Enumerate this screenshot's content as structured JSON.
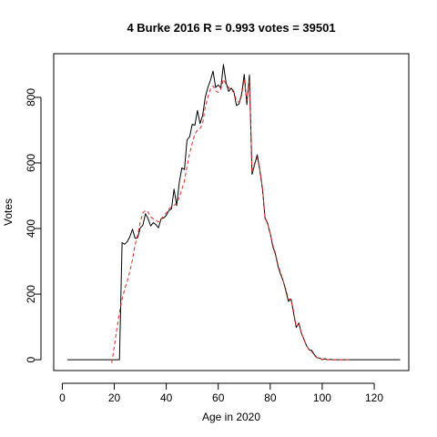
{
  "chart_data": {
    "type": "line",
    "title": "4 Burke 2016 R = 0.993 votes = 39501",
    "xlabel": "Age in 2020",
    "ylabel": "Votes",
    "xlim": [
      -3.3,
      133.3
    ],
    "ylim": [
      -33,
      933
    ],
    "xticks": [
      0,
      20,
      40,
      60,
      80,
      100,
      120
    ],
    "yticks": [
      0,
      200,
      400,
      600,
      800
    ],
    "grid": false,
    "legend": "none",
    "series": [
      {
        "style": "solid",
        "color": "#000000",
        "x": [
          2,
          20,
          21,
          22,
          23,
          24,
          25,
          26,
          27,
          28,
          29,
          30,
          31,
          32,
          33,
          34,
          35,
          36,
          37,
          38,
          39,
          40,
          41,
          42,
          43,
          44,
          45,
          46,
          47,
          48,
          49,
          50,
          51,
          52,
          53,
          54,
          55,
          56,
          57,
          58,
          59,
          60,
          61,
          62,
          63,
          64,
          65,
          66,
          67,
          68,
          69,
          70,
          71,
          72,
          73,
          74,
          75,
          76,
          77,
          78,
          79,
          80,
          81,
          82,
          83,
          84,
          85,
          86,
          87,
          88,
          89,
          90,
          91,
          92,
          93,
          94,
          95,
          96,
          97,
          98,
          99,
          100,
          101,
          102,
          103,
          104,
          105,
          106,
          107,
          108,
          109,
          110,
          111,
          112,
          130
        ],
        "y": [
          0,
          0,
          0,
          0,
          357,
          352,
          360,
          375,
          398,
          370,
          372,
          402,
          410,
          445,
          430,
          408,
          418,
          412,
          402,
          430,
          432,
          440,
          455,
          460,
          520,
          470,
          540,
          585,
          580,
          670,
          680,
          718,
          715,
          760,
          720,
          745,
          800,
          830,
          852,
          880,
          830,
          838,
          828,
          900,
          845,
          818,
          828,
          818,
          775,
          780,
          810,
          870,
          778,
          868,
          565,
          595,
          625,
          578,
          522,
          432,
          415,
          385,
          345,
          322,
          285,
          260,
          240,
          210,
          178,
          185,
          142,
          98,
          112,
          80,
          62,
          42,
          30,
          28,
          15,
          6,
          5,
          0,
          3,
          0,
          1,
          0,
          0,
          0,
          0,
          0,
          0,
          0,
          0,
          0,
          0
        ]
      },
      {
        "style": "dashed",
        "color": "#e8271f",
        "x": [
          19,
          20,
          21,
          22,
          23,
          24,
          25,
          26,
          27,
          28,
          29,
          30,
          31,
          32,
          33,
          34,
          35,
          36,
          37,
          38,
          39,
          40,
          41,
          42,
          43,
          44,
          45,
          46,
          47,
          48,
          49,
          50,
          51,
          52,
          53,
          54,
          55,
          56,
          57,
          58,
          59,
          60,
          61,
          62,
          63,
          64,
          65,
          66,
          67,
          68,
          69,
          70,
          71,
          72,
          73,
          74,
          75,
          76,
          77,
          78,
          79,
          80,
          81,
          82,
          83,
          84,
          85,
          86,
          87,
          88,
          89,
          90,
          91,
          92,
          93,
          94,
          95,
          96,
          97,
          98,
          99,
          100,
          101,
          102,
          103,
          104,
          105,
          106,
          107,
          108,
          109,
          110,
          111
        ],
        "y": [
          -10,
          40,
          95,
          145,
          185,
          215,
          240,
          270,
          305,
          350,
          380,
          420,
          448,
          455,
          450,
          435,
          430,
          425,
          420,
          430,
          438,
          448,
          460,
          465,
          470,
          478,
          495,
          520,
          545,
          590,
          630,
          660,
          688,
          700,
          705,
          720,
          770,
          800,
          825,
          835,
          820,
          815,
          825,
          855,
          840,
          830,
          822,
          815,
          790,
          785,
          805,
          855,
          790,
          850,
          570,
          600,
          615,
          580,
          525,
          435,
          415,
          385,
          350,
          325,
          290,
          265,
          240,
          215,
          185,
          185,
          148,
          102,
          108,
          82,
          60,
          42,
          30,
          25,
          12,
          6,
          4,
          1,
          0,
          0,
          0,
          0,
          0,
          0,
          0,
          0,
          0,
          0,
          0
        ]
      }
    ]
  }
}
